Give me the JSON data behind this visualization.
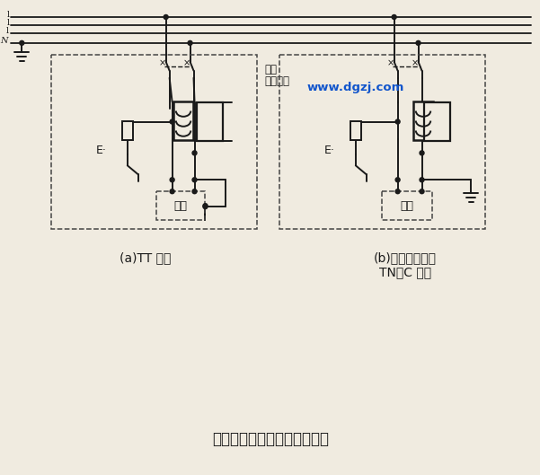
{
  "title": "漏电保护装置常见的错误接法",
  "label_a": "(a)TT 系统",
  "label_b1": "(b)有重复接地的",
  "label_b2": "TN－C 系统",
  "label_leakage1": "漏电",
  "label_leakage2": "保护装置",
  "label_load_a": "负载",
  "label_load_b": "负载",
  "label_E": "E·",
  "watermark": "www.dgzj.com",
  "bg_color": "#f0ebe0",
  "line_color": "#1a1a1a",
  "dashed_color": "#444444",
  "line1_label": "l",
  "line2_label": "l",
  "line3_label": "l",
  "lineN_label": "N"
}
